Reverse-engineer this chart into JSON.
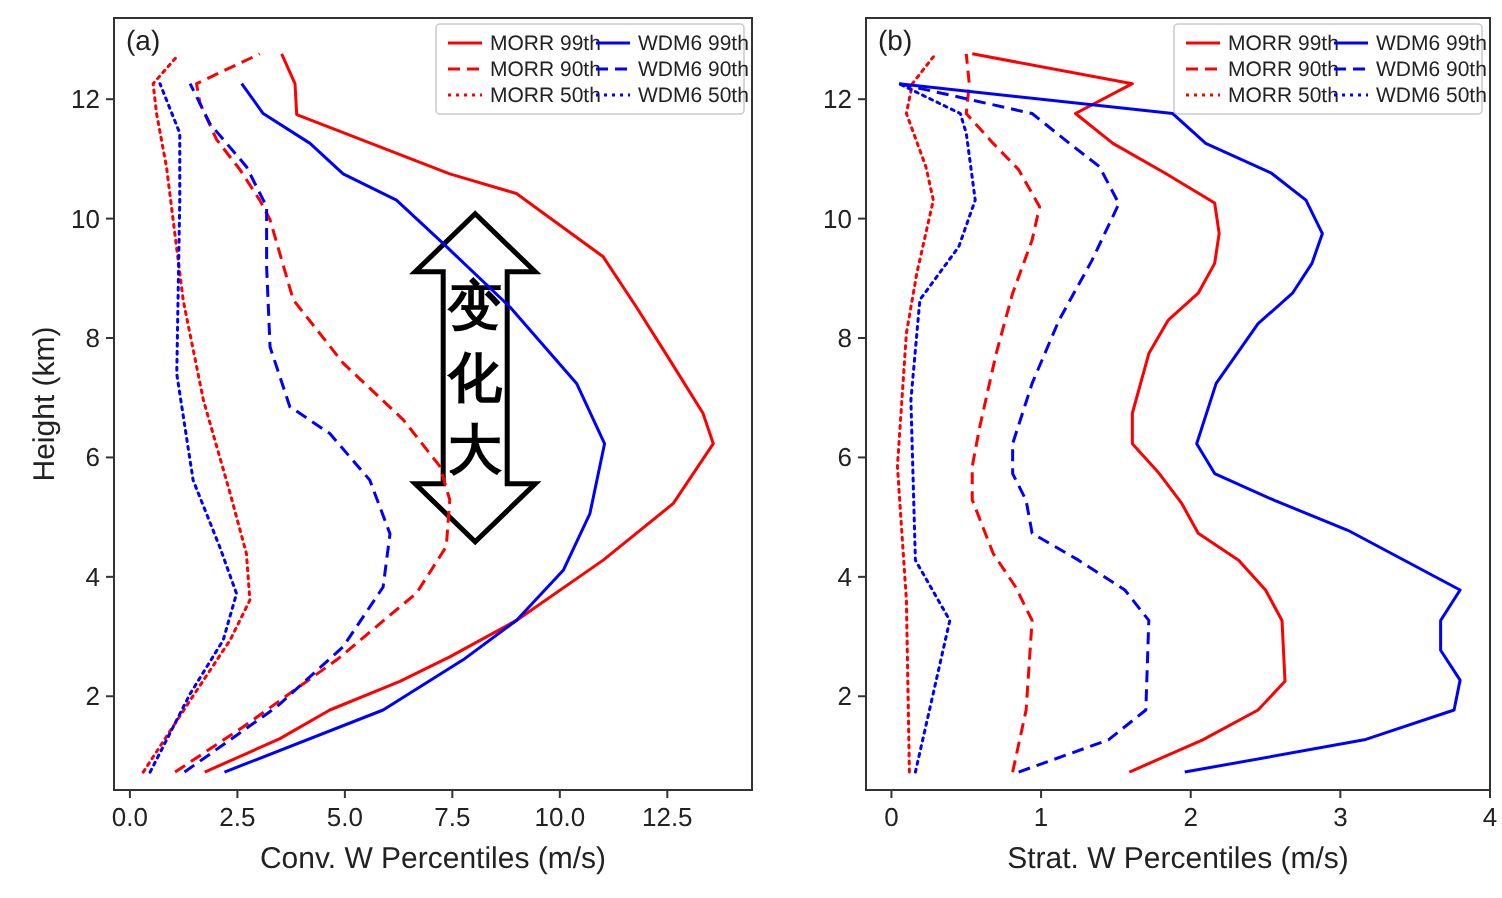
{
  "chart_data": [
    {
      "type": "line",
      "title": "(a)",
      "xlabel": "Conv. W Percentiles (m/s)",
      "ylabel": "Height (km)",
      "xlim": [
        -0.37,
        14.47
      ],
      "ylim": [
        0.43,
        13.36
      ],
      "xticks": [
        {
          "value": 0,
          "label": "0.0"
        },
        {
          "value": 2.5,
          "label": "2.5"
        },
        {
          "value": 5,
          "label": "5.0"
        },
        {
          "value": 7.5,
          "label": "7.5"
        },
        {
          "value": 10,
          "label": "10.0"
        },
        {
          "value": 12.5,
          "label": "12.5"
        }
      ],
      "yticks": [
        2,
        4,
        6,
        8,
        10,
        12
      ],
      "legend": "top right",
      "annotations": [
        "变化大"
      ],
      "series": [
        {
          "name": "MORR 99th",
          "color": "#ff0000",
          "line_style": "solid",
          "x": [
            1.74,
            3.49,
            4.65,
            6.28,
            7.44,
            8.99,
            11.01,
            12.64,
            13.57,
            13.33,
            12.56,
            11.78,
            11.01,
            8.99,
            7.44,
            3.88,
            3.84,
            3.53
          ],
          "values": [
            0.73,
            1.29,
            1.77,
            2.25,
            2.66,
            3.27,
            4.28,
            5.23,
            6.23,
            6.74,
            7.63,
            8.52,
            9.36,
            10.42,
            10.75,
            11.74,
            12.26,
            12.76
          ]
        },
        {
          "name": "MORR 90th",
          "color": "#ff0000",
          "line_style": "dashed",
          "x": [
            1.05,
            2.64,
            4.81,
            6.67,
            7.36,
            7.44,
            7.21,
            6.36,
            4.96,
            3.8,
            3.26,
            3.02,
            2.56,
            2.02,
            1.63,
            1.55,
            3.02
          ],
          "values": [
            0.73,
            1.49,
            2.61,
            3.73,
            4.51,
            5.29,
            5.85,
            6.63,
            7.58,
            8.64,
            9.98,
            10.31,
            10.82,
            11.32,
            11.93,
            12.26,
            12.76
          ]
        },
        {
          "name": "MORR 50th",
          "color": "#ff0000",
          "line_style": "dotted",
          "x": [
            0.31,
            1.4,
            2.33,
            2.79,
            2.71,
            2.33,
            1.71,
            1.24,
            0.85,
            0.62,
            0.54,
            1.09
          ],
          "values": [
            0.73,
            1.93,
            2.94,
            3.61,
            4.39,
            5.4,
            6.96,
            8.63,
            10.87,
            11.76,
            12.26,
            12.71
          ]
        },
        {
          "name": "WDM6 99th",
          "color": "#0000ff",
          "line_style": "solid",
          "x": [
            2.2,
            5.89,
            7.75,
            8.99,
            10.08,
            10.7,
            11.04,
            10.39,
            8.84,
            7.29,
            6.2,
            4.96,
            4.19,
            3.1,
            2.6
          ],
          "values": [
            0.73,
            1.77,
            2.61,
            3.27,
            4.11,
            5.06,
            6.23,
            7.24,
            8.52,
            9.58,
            10.31,
            10.75,
            11.26,
            11.76,
            12.26
          ]
        },
        {
          "name": "WDM6 90th",
          "color": "#0000ff",
          "line_style": "dashed",
          "x": [
            1.27,
            3.41,
            4.96,
            5.89,
            6.05,
            5.58,
            4.65,
            3.72,
            3.26,
            3.18,
            3.18,
            2.71,
            1.86,
            1.4
          ],
          "values": [
            0.73,
            1.82,
            2.83,
            3.83,
            4.72,
            5.62,
            6.4,
            6.85,
            7.85,
            9.19,
            10.2,
            10.87,
            11.59,
            12.26
          ]
        },
        {
          "name": "WDM6 50th",
          "color": "#0000ff",
          "line_style": "dotted",
          "x": [
            0.47,
            1.4,
            2.17,
            2.48,
            2.09,
            1.47,
            1.09,
            1.16,
            1.16,
            0.7
          ],
          "values": [
            0.73,
            2.04,
            2.94,
            3.72,
            4.5,
            5.62,
            7.4,
            10.31,
            11.43,
            12.26
          ]
        }
      ]
    },
    {
      "type": "line",
      "title": "(b)",
      "xlabel": "Strat. W Percentiles (m/s)",
      "xlim": [
        -0.17,
        4.0
      ],
      "ylim": [
        0.43,
        13.36
      ],
      "xticks": [
        0,
        1,
        2,
        3,
        4
      ],
      "yticks": [
        2,
        4,
        6,
        8,
        10,
        12
      ],
      "legend": "top right",
      "series": [
        {
          "name": "MORR 99th",
          "color": "#ff0000",
          "line_style": "solid",
          "x": [
            1.59,
            2.08,
            2.45,
            2.63,
            2.61,
            2.5,
            2.32,
            2.05,
            1.94,
            1.79,
            1.61,
            1.61,
            1.72,
            1.85,
            2.05,
            2.16,
            2.19,
            2.16,
            1.83,
            1.48,
            1.23,
            1.61,
            0.54
          ],
          "values": [
            0.73,
            1.27,
            1.77,
            2.25,
            3.27,
            3.78,
            4.28,
            4.73,
            5.23,
            5.73,
            6.23,
            6.74,
            7.74,
            8.3,
            8.75,
            9.25,
            9.75,
            10.26,
            10.76,
            11.26,
            11.76,
            12.26,
            12.76
          ]
        },
        {
          "name": "MORR 90th",
          "color": "#ff0000",
          "line_style": "dashed",
          "x": [
            0.81,
            0.9,
            0.94,
            0.83,
            0.68,
            0.54,
            0.54,
            0.59,
            0.7,
            0.81,
            0.94,
            0.99,
            0.85,
            0.68,
            0.5,
            0.52,
            0.5
          ],
          "values": [
            0.73,
            1.77,
            3.27,
            3.83,
            4.39,
            5.29,
            5.85,
            6.51,
            7.74,
            8.75,
            9.64,
            10.2,
            10.82,
            11.26,
            11.76,
            12.26,
            12.76
          ]
        },
        {
          "name": "MORR 50th",
          "color": "#ff0000",
          "line_style": "dotted",
          "x": [
            0.12,
            0.1,
            0.04,
            0.1,
            0.17,
            0.28,
            0.23,
            0.1,
            0.14,
            0.28
          ],
          "values": [
            0.73,
            3.61,
            5.85,
            8.08,
            9.09,
            10.31,
            10.87,
            11.76,
            12.26,
            12.71
          ]
        },
        {
          "name": "WDM6 99th",
          "color": "#0000ff",
          "line_style": "solid",
          "x": [
            1.96,
            3.16,
            3.76,
            3.8,
            3.67,
            3.67,
            3.8,
            3.05,
            2.56,
            2.16,
            2.04,
            2.17,
            2.45,
            2.68,
            2.81,
            2.88,
            2.77,
            2.54,
            2.1,
            1.88,
            0.05
          ],
          "values": [
            0.73,
            1.27,
            1.77,
            2.27,
            2.77,
            3.27,
            3.78,
            4.78,
            5.28,
            5.73,
            6.23,
            7.24,
            8.24,
            8.75,
            9.25,
            9.75,
            10.31,
            10.76,
            11.26,
            11.76,
            12.26
          ]
        },
        {
          "name": "WDM6 90th",
          "color": "#0000ff",
          "line_style": "dashed",
          "x": [
            0.85,
            1.45,
            1.7,
            1.72,
            1.56,
            1.25,
            0.94,
            0.9,
            0.81,
            0.81,
            0.94,
            1.12,
            1.34,
            1.52,
            1.39,
            1.19,
            0.94,
            0.05
          ],
          "values": [
            0.73,
            1.27,
            1.77,
            3.27,
            3.78,
            4.28,
            4.73,
            5.28,
            5.73,
            6.23,
            7.24,
            8.3,
            9.3,
            10.25,
            10.87,
            11.26,
            11.76,
            12.26
          ]
        },
        {
          "name": "WDM6 50th",
          "color": "#0000ff",
          "line_style": "dotted",
          "x": [
            0.16,
            0.39,
            0.16,
            0.13,
            0.19,
            0.45,
            0.56,
            0.5,
            0.46,
            0.05
          ],
          "values": [
            0.73,
            3.27,
            4.28,
            6.96,
            8.64,
            9.53,
            10.31,
            11.43,
            11.76,
            12.26
          ]
        }
      ]
    }
  ]
}
